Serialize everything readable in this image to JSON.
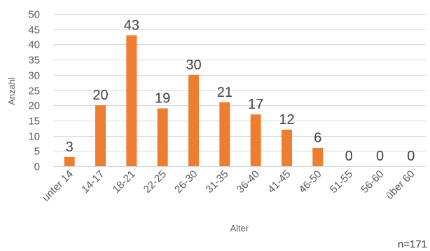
{
  "chart_data": {
    "type": "bar",
    "categories": [
      "unter 14",
      "14-17",
      "18-21",
      "22-25",
      "26-30",
      "31-35",
      "36-40",
      "41-45",
      "46-50",
      "51-55",
      "56-60",
      "über 60"
    ],
    "values": [
      3,
      20,
      43,
      19,
      30,
      21,
      17,
      12,
      6,
      0,
      0,
      0
    ],
    "bar_color": "#ed7d31",
    "xlabel": "Alter",
    "ylabel": "Anzahl",
    "ylim": [
      0,
      50
    ],
    "yticks": [
      0,
      5,
      10,
      15,
      20,
      25,
      30,
      35,
      40,
      45,
      50
    ],
    "grid": true,
    "data_labels": true,
    "note": "n=171"
  }
}
